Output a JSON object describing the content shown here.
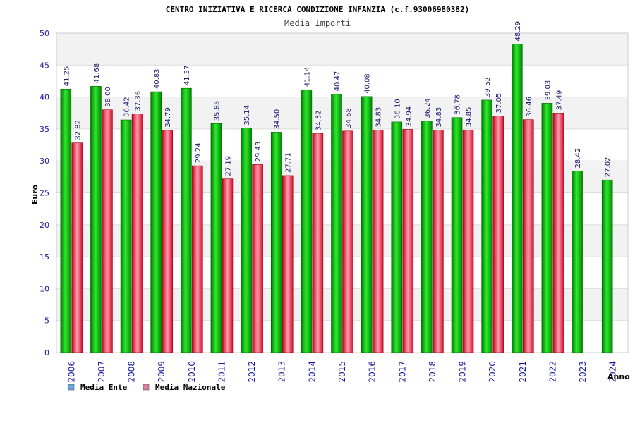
{
  "chart_data": {
    "type": "bar",
    "title": "CENTRO INIZIATIVA E RICERCA CONDIZIONE INFANZIA (c.f.93006980382)",
    "subtitle": "Media Importi",
    "xlabel": "Anno",
    "ylabel": "Euro",
    "ylim": [
      0,
      50
    ],
    "yticks": [
      0,
      5,
      10,
      15,
      20,
      25,
      30,
      35,
      40,
      45,
      50
    ],
    "grid": "horizontal bands",
    "legend_position": "bottom-left",
    "categories": [
      "2006",
      "2007",
      "2008",
      "2009",
      "2010",
      "2011",
      "2012",
      "2013",
      "2014",
      "2015",
      "2016",
      "2017",
      "2018",
      "2019",
      "2020",
      "2021",
      "2022",
      "2023",
      "2024"
    ],
    "series": [
      {
        "name": "Media Ente",
        "color": "#00b000",
        "legend_color": "#66a8e0",
        "values": [
          41.25,
          41.68,
          36.42,
          40.83,
          41.37,
          35.85,
          35.14,
          34.5,
          41.14,
          40.47,
          40.08,
          36.1,
          36.24,
          36.78,
          39.52,
          48.29,
          39.03,
          28.42,
          27.02
        ],
        "labels": [
          "41.25",
          "41.68",
          "36.42",
          "40.83",
          "41.37",
          "35.85",
          "35.14",
          "34.50",
          "41.14",
          "40.47",
          "40.08",
          "36.10",
          "36.24",
          "36.78",
          "39.52",
          "48.29",
          "39.03",
          "28.42",
          "27.02"
        ]
      },
      {
        "name": "Media Nazionale",
        "color": "#e01830",
        "legend_color": "#e07aa0",
        "values": [
          32.82,
          38.0,
          37.36,
          34.79,
          29.24,
          27.19,
          29.43,
          27.71,
          34.32,
          34.68,
          34.83,
          34.94,
          34.83,
          34.85,
          37.05,
          36.46,
          37.49,
          null,
          null
        ],
        "labels": [
          "32.82",
          "38.00",
          "37.36",
          "34.79",
          "29.24",
          "27.19",
          "29.43",
          "27.71",
          "34.32",
          "34.68",
          "34.83",
          "34.94",
          "34.83",
          "34.85",
          "37.05",
          "36.46",
          "37.49",
          null,
          null
        ]
      }
    ]
  }
}
